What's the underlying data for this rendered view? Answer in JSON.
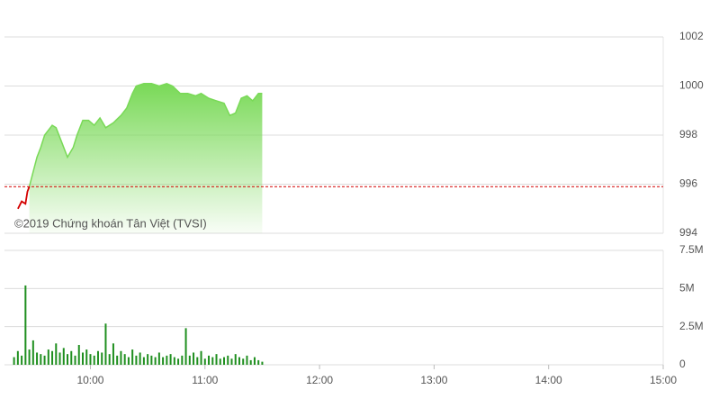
{
  "chart_data": [
    {
      "type": "area",
      "annotation": "©2019 Chứng khoán Tân Việt (TVSI)",
      "x": [
        "09:22",
        "09:24",
        "09:26",
        "09:27",
        "09:28",
        "09:30",
        "09:32",
        "09:34",
        "09:36",
        "09:40",
        "09:42",
        "09:45",
        "09:48",
        "09:51",
        "09:53",
        "09:56",
        "09:59",
        "10:02",
        "10:05",
        "10:08",
        "10:12",
        "10:16",
        "10:19",
        "10:22",
        "10:24",
        "10:28",
        "10:32",
        "10:36",
        "10:40",
        "10:43",
        "10:47",
        "10:51",
        "10:55",
        "10:58",
        "11:02",
        "11:06",
        "11:10",
        "11:13",
        "11:16",
        "11:19",
        "11:22",
        "11:25",
        "11:28",
        "11:30"
      ],
      "values": [
        995.0,
        995.3,
        995.2,
        995.7,
        995.9,
        996.5,
        997.1,
        997.5,
        998.0,
        998.4,
        998.3,
        997.7,
        997.1,
        997.5,
        998.0,
        998.6,
        998.6,
        998.4,
        998.7,
        998.3,
        998.5,
        998.8,
        999.1,
        999.7,
        1000.0,
        1000.1,
        1000.1,
        1000.0,
        1000.1,
        1000.0,
        999.7,
        999.7,
        999.6,
        999.7,
        999.5,
        999.4,
        999.3,
        998.8,
        998.9,
        999.5,
        999.6,
        999.4,
        999.7,
        999.7
      ],
      "reference": 995.9,
      "color": "#79d957",
      "down_color": "#d40000",
      "reference_color": "#d40000",
      "xlim": [
        "09:15",
        "15:00"
      ],
      "ylim": [
        994,
        1002
      ],
      "yticks": [
        994,
        996,
        998,
        1000,
        1002
      ],
      "grid": true
    },
    {
      "type": "bar",
      "x": [
        "09:20",
        "09:22",
        "09:24",
        "09:26",
        "09:28",
        "09:30",
        "09:32",
        "09:34",
        "09:36",
        "09:38",
        "09:40",
        "09:42",
        "09:44",
        "09:46",
        "09:48",
        "09:50",
        "09:52",
        "09:54",
        "09:56",
        "09:58",
        "10:00",
        "10:02",
        "10:04",
        "10:06",
        "10:08",
        "10:10",
        "10:12",
        "10:14",
        "10:16",
        "10:18",
        "10:20",
        "10:22",
        "10:24",
        "10:26",
        "10:28",
        "10:30",
        "10:32",
        "10:34",
        "10:36",
        "10:38",
        "10:40",
        "10:42",
        "10:44",
        "10:46",
        "10:48",
        "10:50",
        "10:52",
        "10:54",
        "10:56",
        "10:58",
        "11:00",
        "11:02",
        "11:04",
        "11:06",
        "11:08",
        "11:10",
        "11:12",
        "11:14",
        "11:16",
        "11:18",
        "11:20",
        "11:22",
        "11:24",
        "11:26",
        "11:28",
        "11:30"
      ],
      "values": [
        500000,
        900000,
        600000,
        5200000,
        1000000,
        1600000,
        800000,
        700000,
        600000,
        1000000,
        900000,
        1400000,
        800000,
        1100000,
        700000,
        900000,
        600000,
        1300000,
        800000,
        1000000,
        700000,
        600000,
        900000,
        800000,
        2700000,
        700000,
        1400000,
        600000,
        900000,
        700000,
        500000,
        1000000,
        600000,
        800000,
        500000,
        700000,
        600000,
        500000,
        800000,
        500000,
        600000,
        700000,
        500000,
        400000,
        600000,
        2400000,
        600000,
        800000,
        500000,
        900000,
        400000,
        600000,
        500000,
        700000,
        400000,
        500000,
        600000,
        400000,
        700000,
        500000,
        400000,
        600000,
        300000,
        500000,
        300000,
        200000
      ],
      "color": "#1f8f1f",
      "xlim": [
        "09:15",
        "15:00"
      ],
      "xticks": [
        "10:00",
        "11:00",
        "12:00",
        "13:00",
        "14:00",
        "15:00"
      ],
      "ylim": [
        0,
        7500000
      ],
      "yticks": [
        0,
        {
          "value": 2500000,
          "label": "2.5M"
        },
        {
          "value": 5000000,
          "label": "5M"
        },
        {
          "value": 7500000,
          "label": "7.5M"
        }
      ],
      "grid": true
    }
  ]
}
